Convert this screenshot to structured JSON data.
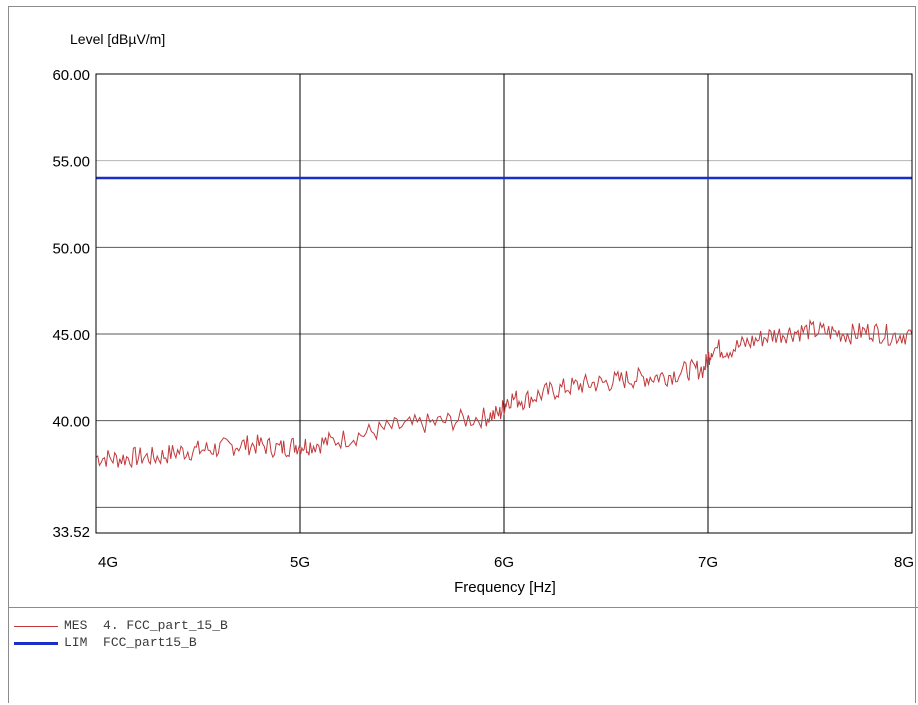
{
  "chart_data": {
    "type": "line",
    "ylabel": "Level [dBµV/m]",
    "xlabel": "Frequency [Hz]",
    "xlim": [
      4,
      8
    ],
    "ylim": [
      33.52,
      60.0
    ],
    "x_tick_labels": [
      "4G",
      "5G",
      "6G",
      "7G",
      "8G"
    ],
    "x_ticks": [
      4,
      5,
      6,
      7,
      8
    ],
    "y_tick_labels": [
      "60.00",
      "55.00",
      "50.00",
      "45.00",
      "40.00",
      "33.52"
    ],
    "y_ticks": [
      60,
      55,
      50,
      45,
      40,
      33.52
    ],
    "grid": true,
    "series": [
      {
        "name": "MES 4. FCC_part_15_B",
        "color": "#c0393c",
        "x_unit": "GHz",
        "points": [
          [
            4.0,
            37.9
          ],
          [
            4.1,
            37.8
          ],
          [
            4.2,
            37.9
          ],
          [
            4.3,
            37.9
          ],
          [
            4.4,
            38.2
          ],
          [
            4.5,
            38.3
          ],
          [
            4.6,
            38.4
          ],
          [
            4.7,
            38.6
          ],
          [
            4.8,
            38.6
          ],
          [
            4.9,
            38.4
          ],
          [
            4.98,
            38.6
          ],
          [
            5.05,
            38.6
          ],
          [
            5.15,
            38.8
          ],
          [
            5.3,
            39.2
          ],
          [
            5.45,
            39.6
          ],
          [
            5.6,
            39.8
          ],
          [
            5.75,
            40.0
          ],
          [
            5.9,
            40.2
          ],
          [
            5.98,
            40.4
          ],
          [
            6.02,
            41.3
          ],
          [
            6.1,
            41.2
          ],
          [
            6.2,
            41.6
          ],
          [
            6.3,
            41.9
          ],
          [
            6.4,
            42.1
          ],
          [
            6.5,
            42.2
          ],
          [
            6.6,
            42.4
          ],
          [
            6.7,
            42.5
          ],
          [
            6.8,
            42.6
          ],
          [
            6.9,
            42.9
          ],
          [
            6.98,
            43.0
          ],
          [
            7.02,
            44.2
          ],
          [
            7.1,
            44.1
          ],
          [
            7.2,
            44.5
          ],
          [
            7.3,
            44.9
          ],
          [
            7.4,
            45.1
          ],
          [
            7.5,
            45.2
          ],
          [
            7.6,
            45.1
          ],
          [
            7.7,
            45.0
          ],
          [
            7.8,
            45.2
          ],
          [
            7.9,
            44.9
          ],
          [
            8.0,
            45.0
          ]
        ]
      },
      {
        "name": "LIM FCC_part15_B",
        "color": "#1a2fc8",
        "x_unit": "GHz",
        "points": [
          [
            4.0,
            54.0
          ],
          [
            8.0,
            54.0
          ]
        ]
      }
    ]
  },
  "legend": [
    {
      "type": "MES",
      "label": "4. FCC_part_15_B",
      "color": "#c0393c"
    },
    {
      "type": "LIM",
      "label": "FCC_part15_B",
      "color": "#1a2fc8"
    }
  ]
}
